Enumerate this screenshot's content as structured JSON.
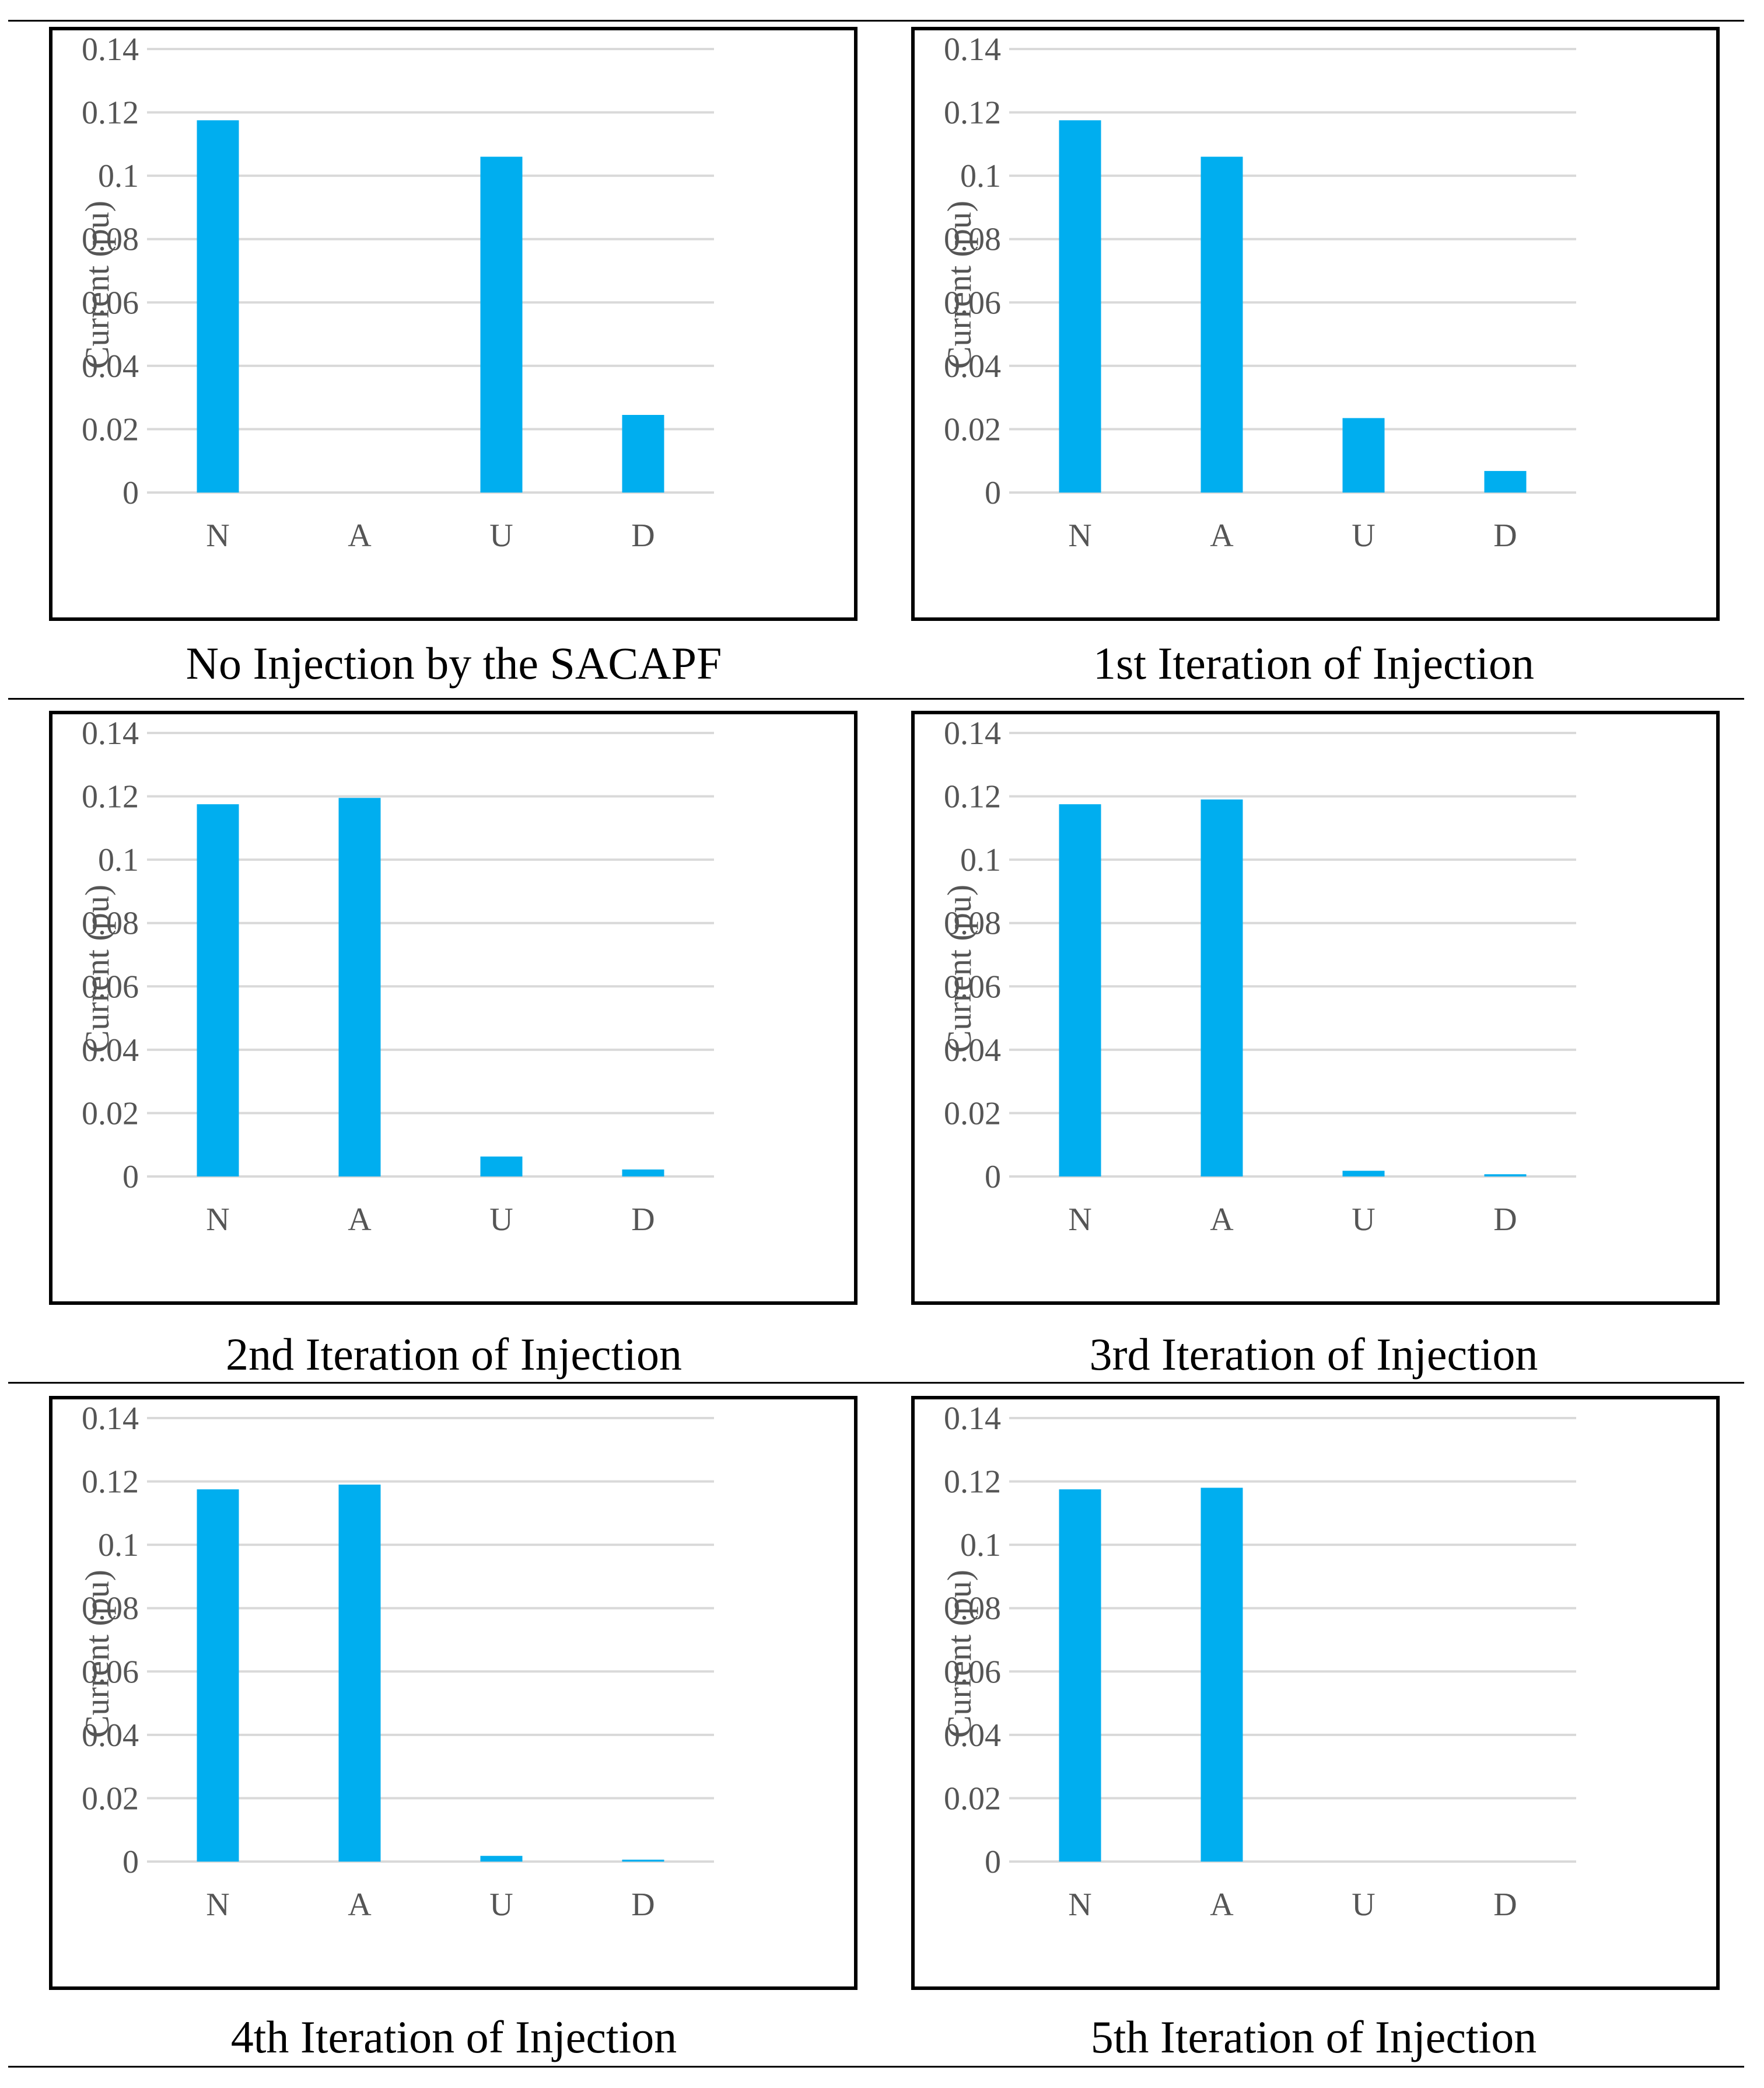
{
  "figure": {
    "captions": [
      "No Injection by the SACAPF",
      "1st Iteration of Injection",
      "2nd Iteration of Injection",
      "3rd Iteration of Injection",
      "4th Iteration of Injection",
      "5th Iteration of Injection"
    ]
  },
  "colors": {
    "bar": "#00AEEF",
    "grid": "#D9D9D9",
    "tick_text": "#555555"
  },
  "chart_data": [
    {
      "type": "bar",
      "title": "No Injection by the SACAPF",
      "categories": [
        "N",
        "A",
        "U",
        "D"
      ],
      "values": [
        0.1175,
        0,
        0.106,
        0.0245
      ],
      "ylabel": "Current (pu)",
      "xlabel": "",
      "ylim": [
        0,
        0.14
      ],
      "yticks": [
        "0",
        "0.02",
        "0.04",
        "0.06",
        "0.08",
        "0.1",
        "0.12",
        "0.14"
      ],
      "grid": true
    },
    {
      "type": "bar",
      "title": "1st Iteration of Injection",
      "categories": [
        "N",
        "A",
        "U",
        "D"
      ],
      "values": [
        0.1175,
        0.106,
        0.0235,
        0.0068
      ],
      "ylabel": "Current (pu)",
      "xlabel": "",
      "ylim": [
        0,
        0.14
      ],
      "yticks": [
        "0",
        "0.02",
        "0.04",
        "0.06",
        "0.08",
        "0.1",
        "0.12",
        "0.14"
      ],
      "grid": true
    },
    {
      "type": "bar",
      "title": "2nd Iteration of Injection",
      "categories": [
        "N",
        "A",
        "U",
        "D"
      ],
      "values": [
        0.1175,
        0.1195,
        0.0063,
        0.0022
      ],
      "ylabel": "Current (pu)",
      "xlabel": "",
      "ylim": [
        0,
        0.14
      ],
      "yticks": [
        "0",
        "0.02",
        "0.04",
        "0.06",
        "0.08",
        "0.1",
        "0.12",
        "0.14"
      ],
      "grid": true
    },
    {
      "type": "bar",
      "title": "3rd Iteration of Injection",
      "categories": [
        "N",
        "A",
        "U",
        "D"
      ],
      "values": [
        0.1175,
        0.119,
        0.0018,
        0.0007
      ],
      "ylabel": "Current (pu)",
      "xlabel": "",
      "ylim": [
        0,
        0.14
      ],
      "yticks": [
        "0",
        "0.02",
        "0.04",
        "0.06",
        "0.08",
        "0.1",
        "0.12",
        "0.14"
      ],
      "grid": true
    },
    {
      "type": "bar",
      "title": "4th Iteration of Injection",
      "categories": [
        "N",
        "A",
        "U",
        "D"
      ],
      "values": [
        0.1175,
        0.119,
        0.0018,
        0.0006
      ],
      "ylabel": "Current (pu)",
      "xlabel": "",
      "ylim": [
        0,
        0.14
      ],
      "yticks": [
        "0",
        "0.02",
        "0.04",
        "0.06",
        "0.08",
        "0.1",
        "0.12",
        "0.14"
      ],
      "grid": true
    },
    {
      "type": "bar",
      "title": "5th Iteration of Injection",
      "categories": [
        "N",
        "A",
        "U",
        "D"
      ],
      "values": [
        0.1175,
        0.118,
        0,
        0
      ],
      "ylabel": "Current (pu)",
      "xlabel": "",
      "ylim": [
        0,
        0.14
      ],
      "yticks": [
        "0",
        "0.02",
        "0.04",
        "0.06",
        "0.08",
        "0.1",
        "0.12",
        "0.14"
      ],
      "grid": true
    }
  ]
}
